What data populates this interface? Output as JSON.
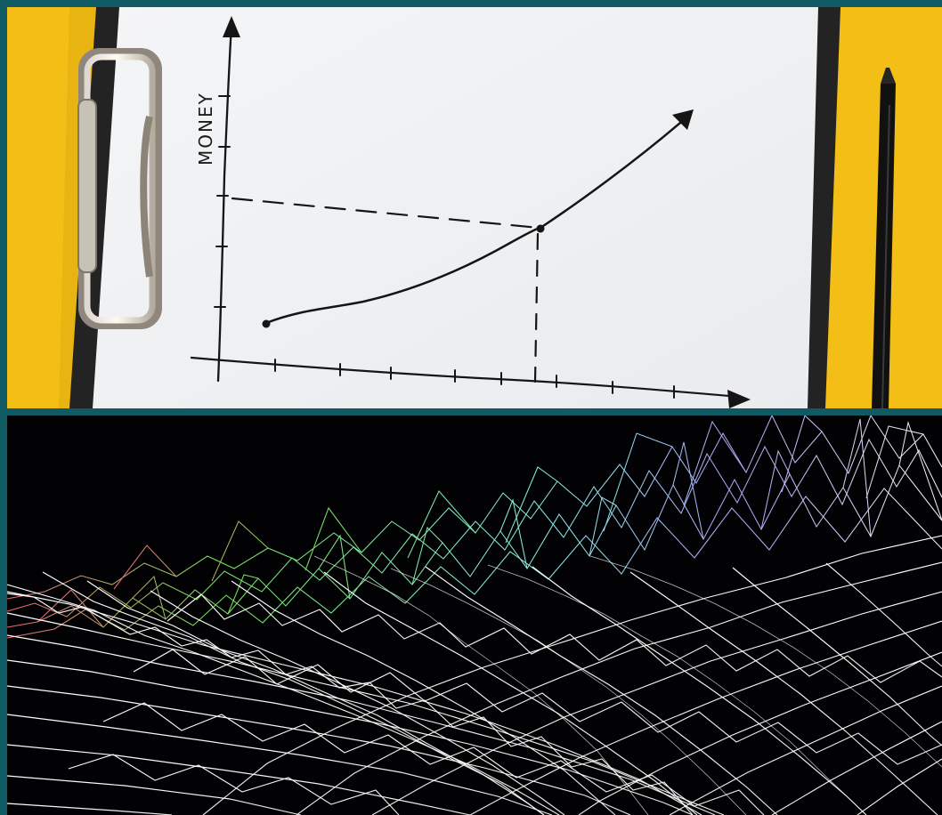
{
  "image": {
    "top_scene": {
      "axis_label": "MONEY",
      "colors": {
        "background": "#f3be16",
        "clipboard": "#222222",
        "paper": "#eef0f2",
        "ink": "#151515",
        "pencil": "#111111",
        "border": "#0f5a63"
      }
    },
    "bottom_scene": {
      "colors": {
        "background": "#020204",
        "wireframe": "#ffffff",
        "accent_green": "#7df05f",
        "accent_cyan": "#8ff7f3",
        "accent_purple": "#9f8cff"
      }
    }
  }
}
